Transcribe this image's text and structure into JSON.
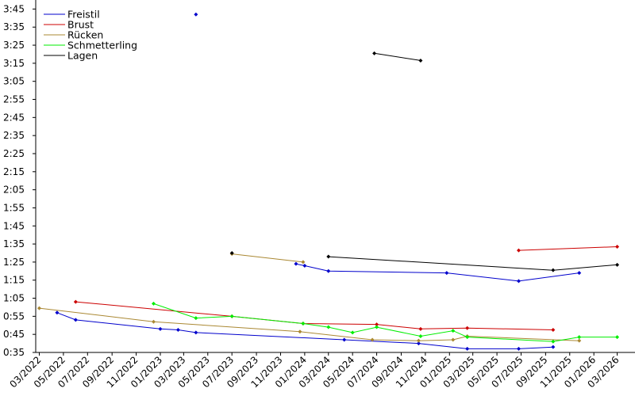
{
  "chart_data": {
    "type": "line",
    "title": "",
    "xlabel": "",
    "ylabel": "",
    "x_axis": {
      "type": "date",
      "range": [
        "2022-02-20",
        "2026-04-15"
      ],
      "tick_dates": [
        "2022-03-01",
        "2022-05-01",
        "2022-07-01",
        "2022-09-01",
        "2022-11-01",
        "2023-01-01",
        "2023-03-01",
        "2023-05-01",
        "2023-07-01",
        "2023-09-01",
        "2023-11-01",
        "2024-01-01",
        "2024-03-01",
        "2024-05-01",
        "2024-07-01",
        "2024-09-01",
        "2024-11-01",
        "2025-01-01",
        "2025-03-01",
        "2025-05-01",
        "2025-07-01",
        "2025-09-01",
        "2025-11-01",
        "2026-01-01",
        "2026-03-01"
      ],
      "tick_labels": [
        "03/2022",
        "05/2022",
        "07/2022",
        "09/2022",
        "11/2022",
        "01/2023",
        "03/2023",
        "05/2023",
        "07/2023",
        "09/2023",
        "11/2023",
        "01/2024",
        "03/2024",
        "05/2024",
        "07/2024",
        "09/2024",
        "11/2024",
        "01/2025",
        "03/2025",
        "05/2025",
        "07/2025",
        "09/2025",
        "11/2025",
        "01/2026",
        "03/2026"
      ]
    },
    "y_axis": {
      "unit": "seconds",
      "range": [
        35,
        230
      ],
      "ticks": [
        35,
        45,
        55,
        65,
        75,
        85,
        95,
        105,
        115,
        125,
        135,
        145,
        155,
        165,
        175,
        185,
        195,
        205,
        215,
        225
      ],
      "tick_labels": [
        "0:35",
        "0:45",
        "0:55",
        "1:05",
        "1:15",
        "1:25",
        "1:35",
        "1:45",
        "1:55",
        "2:05",
        "2:15",
        "2:25",
        "2:35",
        "2:45",
        "2:55",
        "3:05",
        "3:15",
        "3:25",
        "3:35",
        "3:45"
      ]
    },
    "grid": false,
    "legend_position": "top-left",
    "series": [
      {
        "name": "Freistil",
        "color": "#0000cc",
        "segments": [
          [
            [
              "2022-04-15",
              57
            ],
            [
              "2022-06-01",
              53
            ],
            [
              "2023-01-01",
              48
            ],
            [
              "2023-02-15",
              47.5
            ],
            [
              "2023-04-01",
              46
            ],
            [
              "2024-04-10",
              42
            ],
            [
              "2024-10-15",
              40
            ],
            [
              "2025-02-15",
              37
            ],
            [
              "2025-06-25",
              37
            ],
            [
              "2025-09-20",
              38
            ]
          ],
          [
            [
              "2023-12-10",
              84
            ],
            [
              "2024-01-01",
              83
            ],
            [
              "2024-03-01",
              80
            ],
            [
              "2024-12-25",
              79
            ],
            [
              "2025-06-25",
              74.5
            ],
            [
              "2025-11-25",
              79
            ]
          ],
          [
            [
              "2023-04-01",
              222
            ]
          ]
        ]
      },
      {
        "name": "Brust",
        "color": "#cc0000",
        "segments": [
          [
            [
              "2022-06-01",
              63
            ],
            [
              "2023-07-01",
              55
            ],
            [
              "2023-12-28",
              51
            ],
            [
              "2024-07-01",
              50.5
            ],
            [
              "2024-10-20",
              48
            ],
            [
              "2025-02-15",
              48.5
            ],
            [
              "2025-09-20",
              47.5
            ]
          ],
          [
            [
              "2025-06-25",
              91.5
            ],
            [
              "2026-03-01",
              93.5
            ]
          ]
        ]
      },
      {
        "name": "Rücken",
        "color": "#aa8833",
        "segments": [
          [
            [
              "2022-03-01",
              59.5
            ],
            [
              "2022-12-15",
              52
            ],
            [
              "2023-12-20",
              46.5
            ],
            [
              "2024-06-20",
              42
            ],
            [
              "2024-10-15",
              41.5
            ],
            [
              "2025-01-10",
              42
            ],
            [
              "2025-02-15",
              44
            ],
            [
              "2025-11-25",
              41.5
            ]
          ],
          [
            [
              "2023-07-01",
              89.5
            ],
            [
              "2023-12-28",
              85
            ]
          ]
        ]
      },
      {
        "name": "Schmetterling",
        "color": "#00ee00",
        "segments": [
          [
            [
              "2022-12-15",
              62
            ],
            [
              "2023-04-01",
              54
            ],
            [
              "2023-07-01",
              55
            ],
            [
              "2023-12-28",
              51
            ],
            [
              "2024-03-01",
              49
            ],
            [
              "2024-05-01",
              46
            ],
            [
              "2024-07-01",
              49
            ],
            [
              "2024-10-20",
              44
            ],
            [
              "2025-01-10",
              47
            ],
            [
              "2025-02-15",
              43.5
            ],
            [
              "2025-09-20",
              41
            ],
            [
              "2025-11-25",
              43.5
            ],
            [
              "2026-03-01",
              43.5
            ]
          ]
        ]
      },
      {
        "name": "Lagen",
        "color": "#000000",
        "segments": [
          [
            [
              "2023-07-01",
              90
            ]
          ],
          [
            [
              "2024-03-01",
              88
            ],
            [
              "2025-09-20",
              80.5
            ],
            [
              "2026-03-01",
              83.5
            ]
          ],
          [
            [
              "2024-06-25",
              200.5
            ],
            [
              "2024-10-20",
              196.5
            ]
          ]
        ]
      }
    ]
  }
}
